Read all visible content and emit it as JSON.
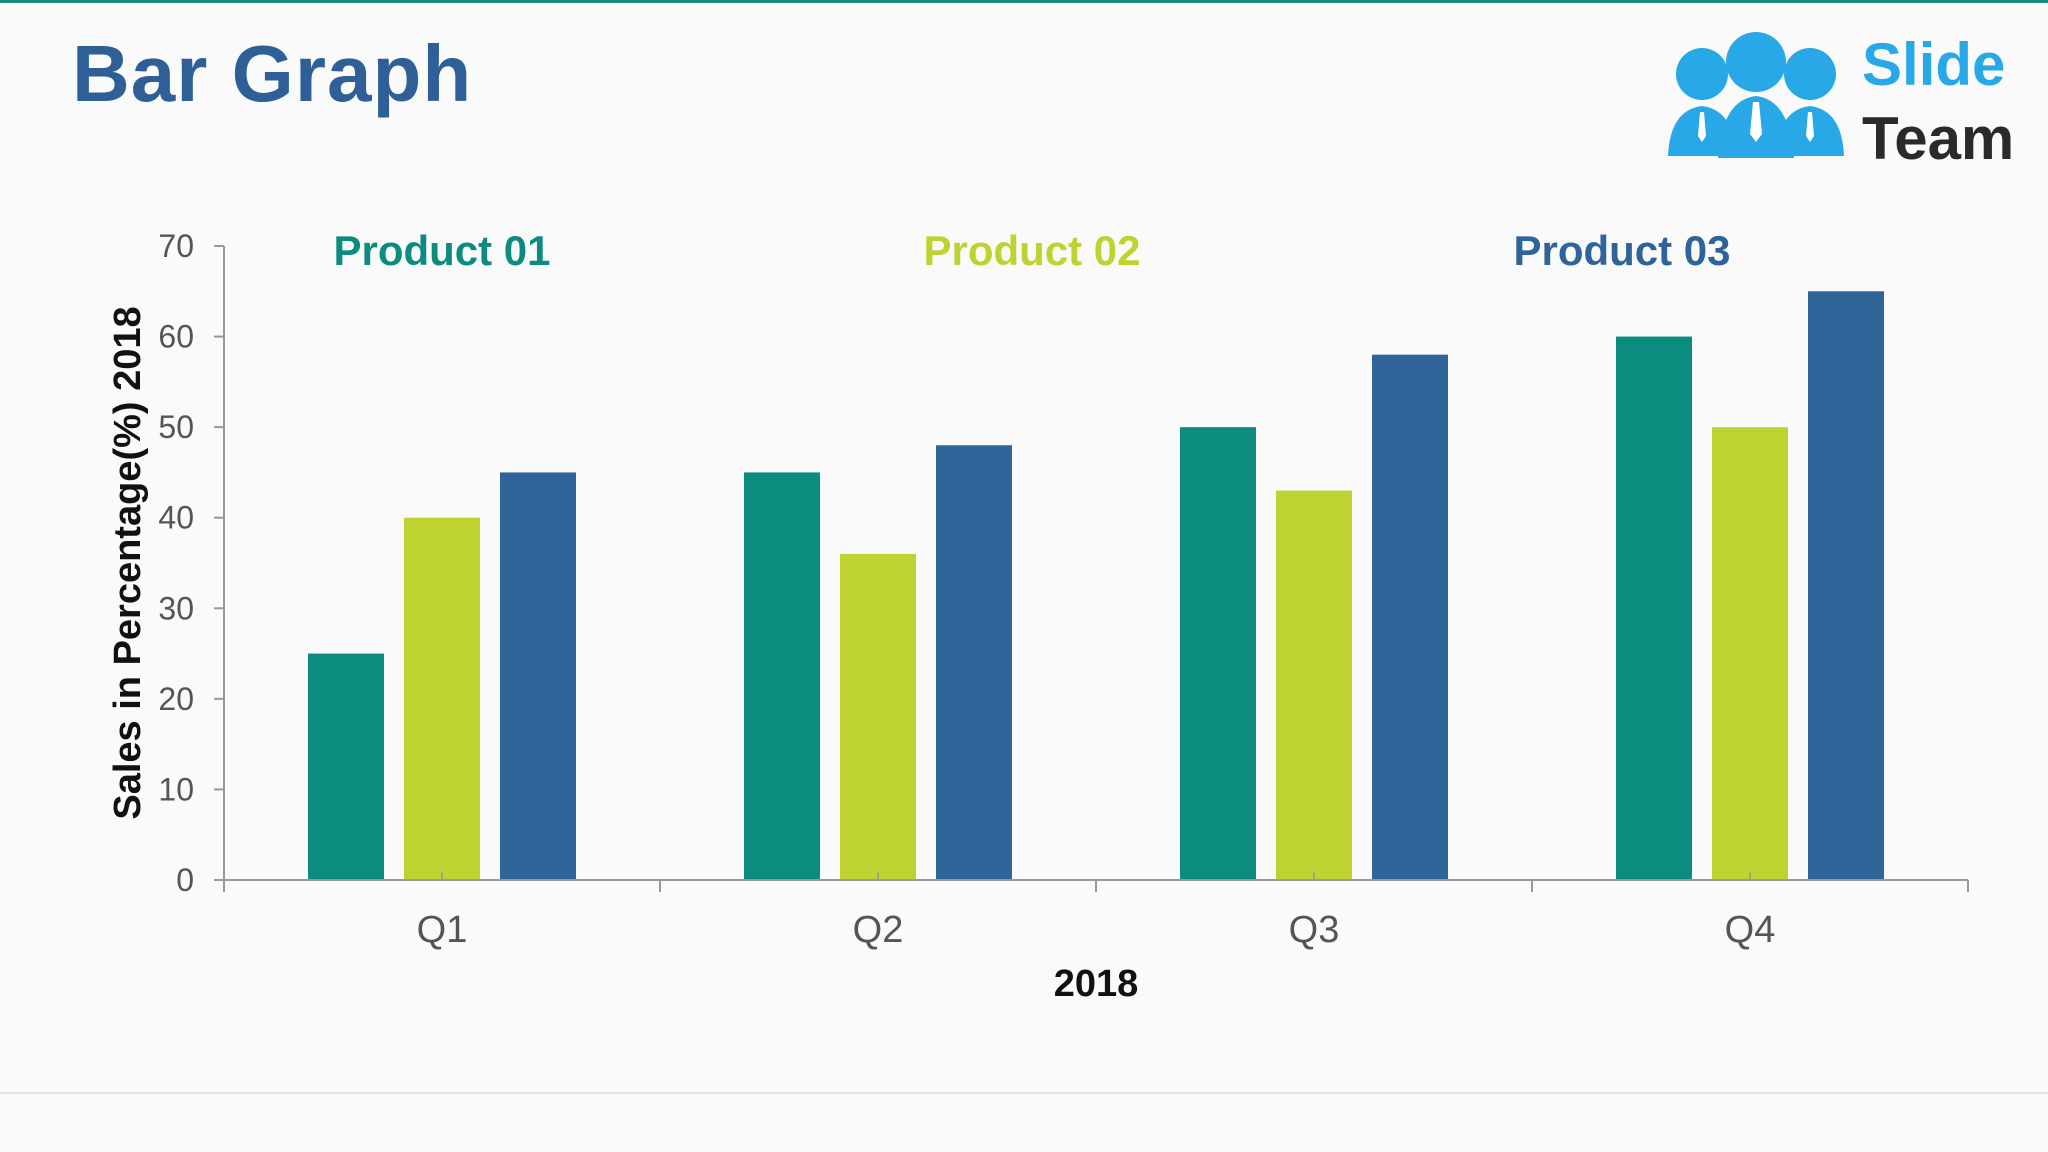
{
  "slide": {
    "title": "Bar Graph"
  },
  "logo": {
    "line1": "Slide",
    "line2": "Team",
    "colors": {
      "people": "#29a8e8",
      "text1": "#29a8e8",
      "text2": "#2a2a2a"
    }
  },
  "colors": {
    "title": "#2e5f97",
    "top_rule": "#1a8a7c",
    "axis": "#999999"
  },
  "chart_data": {
    "type": "bar",
    "title": "",
    "xlabel": "2018",
    "ylabel": "Sales in Percentage(%) 2018",
    "categories": [
      "Q1",
      "Q2",
      "Q3",
      "Q4"
    ],
    "ylim": [
      0,
      70
    ],
    "yticks": [
      0,
      10,
      20,
      30,
      40,
      50,
      60,
      70
    ],
    "grid": false,
    "legend_position": "top",
    "series": [
      {
        "name": "Product 01",
        "color": "#0b8c7e",
        "values": [
          25,
          45,
          50,
          60
        ]
      },
      {
        "name": "Product 02",
        "color": "#bed230",
        "values": [
          40,
          36,
          43,
          50
        ]
      },
      {
        "name": "Product 03",
        "color": "#2f6499",
        "values": [
          45,
          48,
          58,
          65
        ]
      }
    ]
  }
}
